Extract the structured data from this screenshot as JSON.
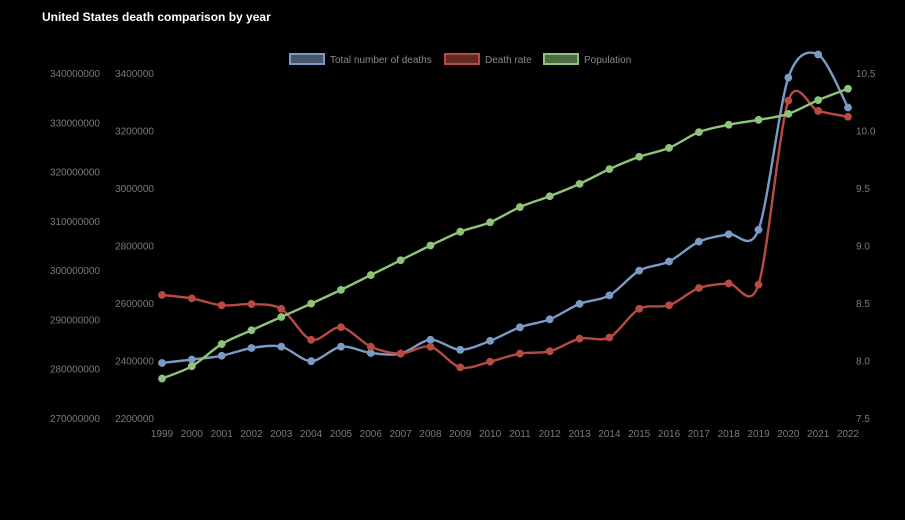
{
  "title": "United States death comparison by year",
  "colors": {
    "background": "#000000",
    "deaths": "#7c9bc4",
    "rate": "#b84a44",
    "population": "#8ec47a",
    "tick": "#7a7a7a"
  },
  "chart_data": {
    "type": "line",
    "title": "United States death comparison by year",
    "legend_position": "top-center",
    "grid": false,
    "x": [
      "1999",
      "2000",
      "2001",
      "2002",
      "2003",
      "2004",
      "2005",
      "2006",
      "2007",
      "2008",
      "2009",
      "2010",
      "2011",
      "2012",
      "2013",
      "2014",
      "2015",
      "2016",
      "2017",
      "2018",
      "2019",
      "2020",
      "2021",
      "2022"
    ],
    "axes": {
      "population": {
        "side": "left-outer",
        "min": 270000000,
        "max": 340000000,
        "ticks": [
          "340000000",
          "330000000",
          "320000000",
          "310000000",
          "300000000",
          "290000000",
          "280000000",
          "270000000"
        ]
      },
      "deaths": {
        "side": "left-inner",
        "min": 2200000,
        "max": 3400000,
        "ticks": [
          "3400000",
          "3200000",
          "3000000",
          "2800000",
          "2600000",
          "2400000",
          "2200000"
        ]
      },
      "rate": {
        "side": "right",
        "min": 7.5,
        "max": 10.5,
        "ticks": [
          "10.5",
          "10.0",
          "9.5",
          "9.0",
          "8.5",
          "8.0",
          "7.5"
        ]
      }
    },
    "series": [
      {
        "name": "Total number of deaths",
        "key": "deaths",
        "axis": "deaths",
        "values": [
          2391399,
          2403351,
          2416425,
          2443387,
          2448288,
          2397615,
          2448017,
          2426264,
          2423712,
          2471984,
          2437163,
          2468435,
          2515458,
          2543279,
          2596993,
          2626418,
          2712630,
          2744248,
          2813503,
          2839205,
          2854838,
          3383729,
          3464231,
          3279857
        ]
      },
      {
        "name": "Death rate",
        "key": "rate",
        "axis": "rate",
        "values": [
          8.57,
          8.54,
          8.48,
          8.49,
          8.45,
          8.18,
          8.29,
          8.12,
          8.06,
          8.12,
          7.94,
          7.99,
          8.06,
          8.08,
          8.19,
          8.2,
          8.45,
          8.48,
          8.63,
          8.67,
          8.66,
          10.26,
          10.17,
          10.12
        ]
      },
      {
        "name": "Population",
        "key": "population",
        "axis": "population",
        "values": [
          278000000,
          280500000,
          285000000,
          287800000,
          290500000,
          293200000,
          296000000,
          299000000,
          302000000,
          305000000,
          307800000,
          309700000,
          312800000,
          315000000,
          317500000,
          320500000,
          323000000,
          324800000,
          328000000,
          329500000,
          330500000,
          331700000,
          334500000,
          336800000
        ]
      }
    ]
  }
}
